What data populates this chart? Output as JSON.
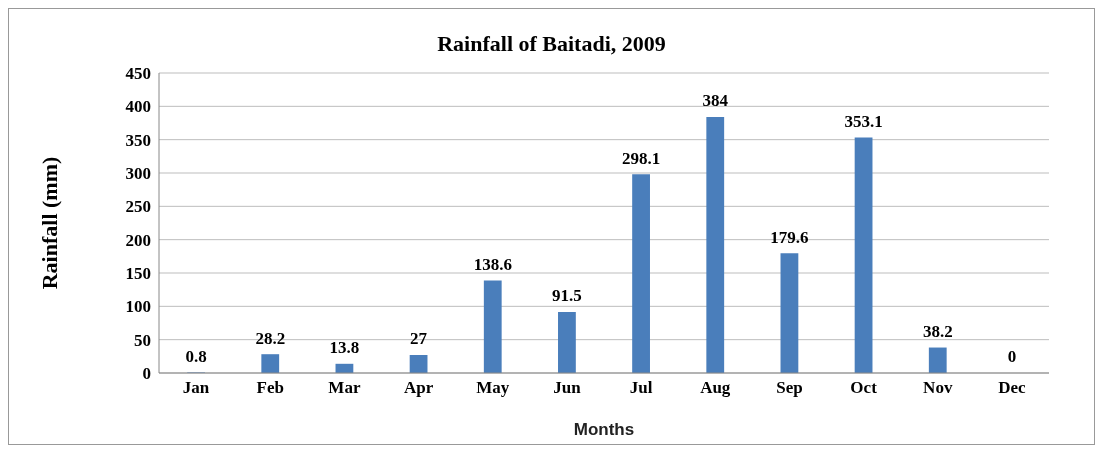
{
  "chart_data": {
    "type": "bar",
    "title": "Rainfall of Baitadi, 2009",
    "xlabel": "Months",
    "ylabel": "Rainfall (mm)",
    "categories": [
      "Jan",
      "Feb",
      "Mar",
      "Apr",
      "May",
      "Jun",
      "Jul",
      "Aug",
      "Sep",
      "Oct",
      "Nov",
      "Dec"
    ],
    "values": [
      0.8,
      28.2,
      13.8,
      27,
      138.6,
      91.5,
      298.1,
      384,
      179.6,
      353.1,
      38.2,
      0
    ],
    "color": "#4a7ebb",
    "ylim": [
      0,
      450
    ],
    "yticks": [
      0,
      50,
      100,
      150,
      200,
      250,
      300,
      350,
      400,
      450
    ],
    "grid": "y",
    "data_labels": true
  }
}
